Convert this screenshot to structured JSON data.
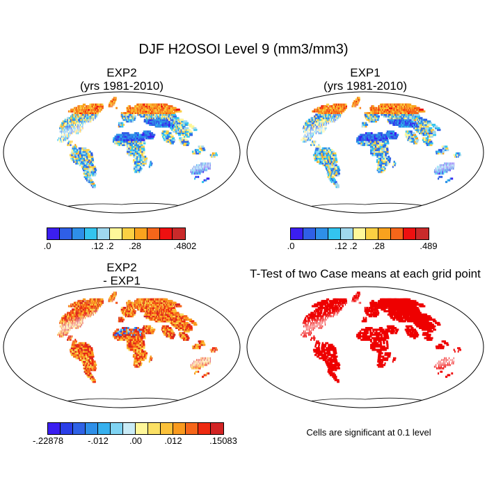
{
  "title": "DJF H2OSOI Level 9 (mm3/mm3)",
  "panels": [
    {
      "id": "exp2",
      "title_lines": [
        "EXP2",
        "(yrs 1981-2010)"
      ],
      "field": "absolute",
      "colorbar": {
        "colors": [
          "#3b1ef0",
          "#2f5fe6",
          "#2e8fe8",
          "#33c4ef",
          "#9fd8ee",
          "#fff79a",
          "#fbd043",
          "#f9a21e",
          "#f6661a",
          "#ee1010",
          "#c92a2a"
        ],
        "labels": [
          ".0",
          ".12",
          ".2",
          ".28",
          ".4802"
        ],
        "label_positions": [
          0,
          4,
          5,
          7,
          11
        ]
      }
    },
    {
      "id": "exp1",
      "title_lines": [
        "EXP1",
        "(yrs 1981-2010)"
      ],
      "field": "absolute",
      "colorbar": {
        "colors": [
          "#3b1ef0",
          "#2f5fe6",
          "#2e8fe8",
          "#33c4ef",
          "#9fd8ee",
          "#fff79a",
          "#fbd043",
          "#f9a21e",
          "#f6661a",
          "#ee1010",
          "#c92a2a"
        ],
        "labels": [
          ".0",
          ".12",
          ".2",
          ".28",
          ".489"
        ],
        "label_positions": [
          0,
          4,
          5,
          7,
          11
        ]
      }
    },
    {
      "id": "diff",
      "title_lines": [
        "EXP2",
        "- EXP1"
      ],
      "field": "difference",
      "colorbar": {
        "colors": [
          "#3b1ef0",
          "#2a3ee8",
          "#2f62e6",
          "#2e8fe8",
          "#36b0ee",
          "#7fd3f2",
          "#c9ebf6",
          "#fff79a",
          "#fbe064",
          "#fbc13a",
          "#f99a1e",
          "#f6661a",
          "#ee2a10",
          "#d22424"
        ],
        "labels": [
          "-.22878",
          "-.012",
          ".00",
          ".012",
          ".15083"
        ],
        "label_positions": [
          0,
          4,
          7,
          10,
          14
        ]
      }
    },
    {
      "id": "ttest",
      "title_lines": [
        "T-Test of two Case means at each grid point"
      ],
      "field": "significance",
      "note": "Cells are significant at 0.1 level",
      "sig_color": "#ee0000"
    }
  ]
}
